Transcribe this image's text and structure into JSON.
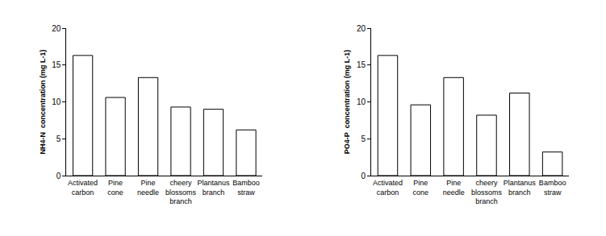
{
  "chart_data": [
    {
      "type": "bar",
      "y_label": "NH4-N  concentration (mg L-1)",
      "categories": [
        "Activated carbon",
        "Pine cone",
        "Pine needle",
        "cheery blossoms branch",
        "Plantanus branch",
        "Bamboo straw"
      ],
      "values": [
        16.3,
        10.6,
        13.3,
        9.3,
        9.0,
        6.2
      ],
      "color": "#ffffff",
      "ylim": [
        0,
        20
      ],
      "yticks": [
        0,
        5,
        10,
        15,
        20
      ],
      "grid": false
    },
    {
      "type": "bar",
      "y_label": "PO4-P  concentration (mg L-1)",
      "categories": [
        "Activated carbon",
        "Pine cone",
        "Pine needle",
        "cheery blossoms branch",
        "Plantanus branch",
        "Bamboo straw"
      ],
      "values": [
        16.3,
        9.6,
        13.3,
        8.2,
        11.2,
        3.2
      ],
      "color": "#ffffff",
      "ylim": [
        0,
        20
      ],
      "yticks": [
        0,
        5,
        10,
        15,
        20
      ],
      "grid": false
    }
  ]
}
